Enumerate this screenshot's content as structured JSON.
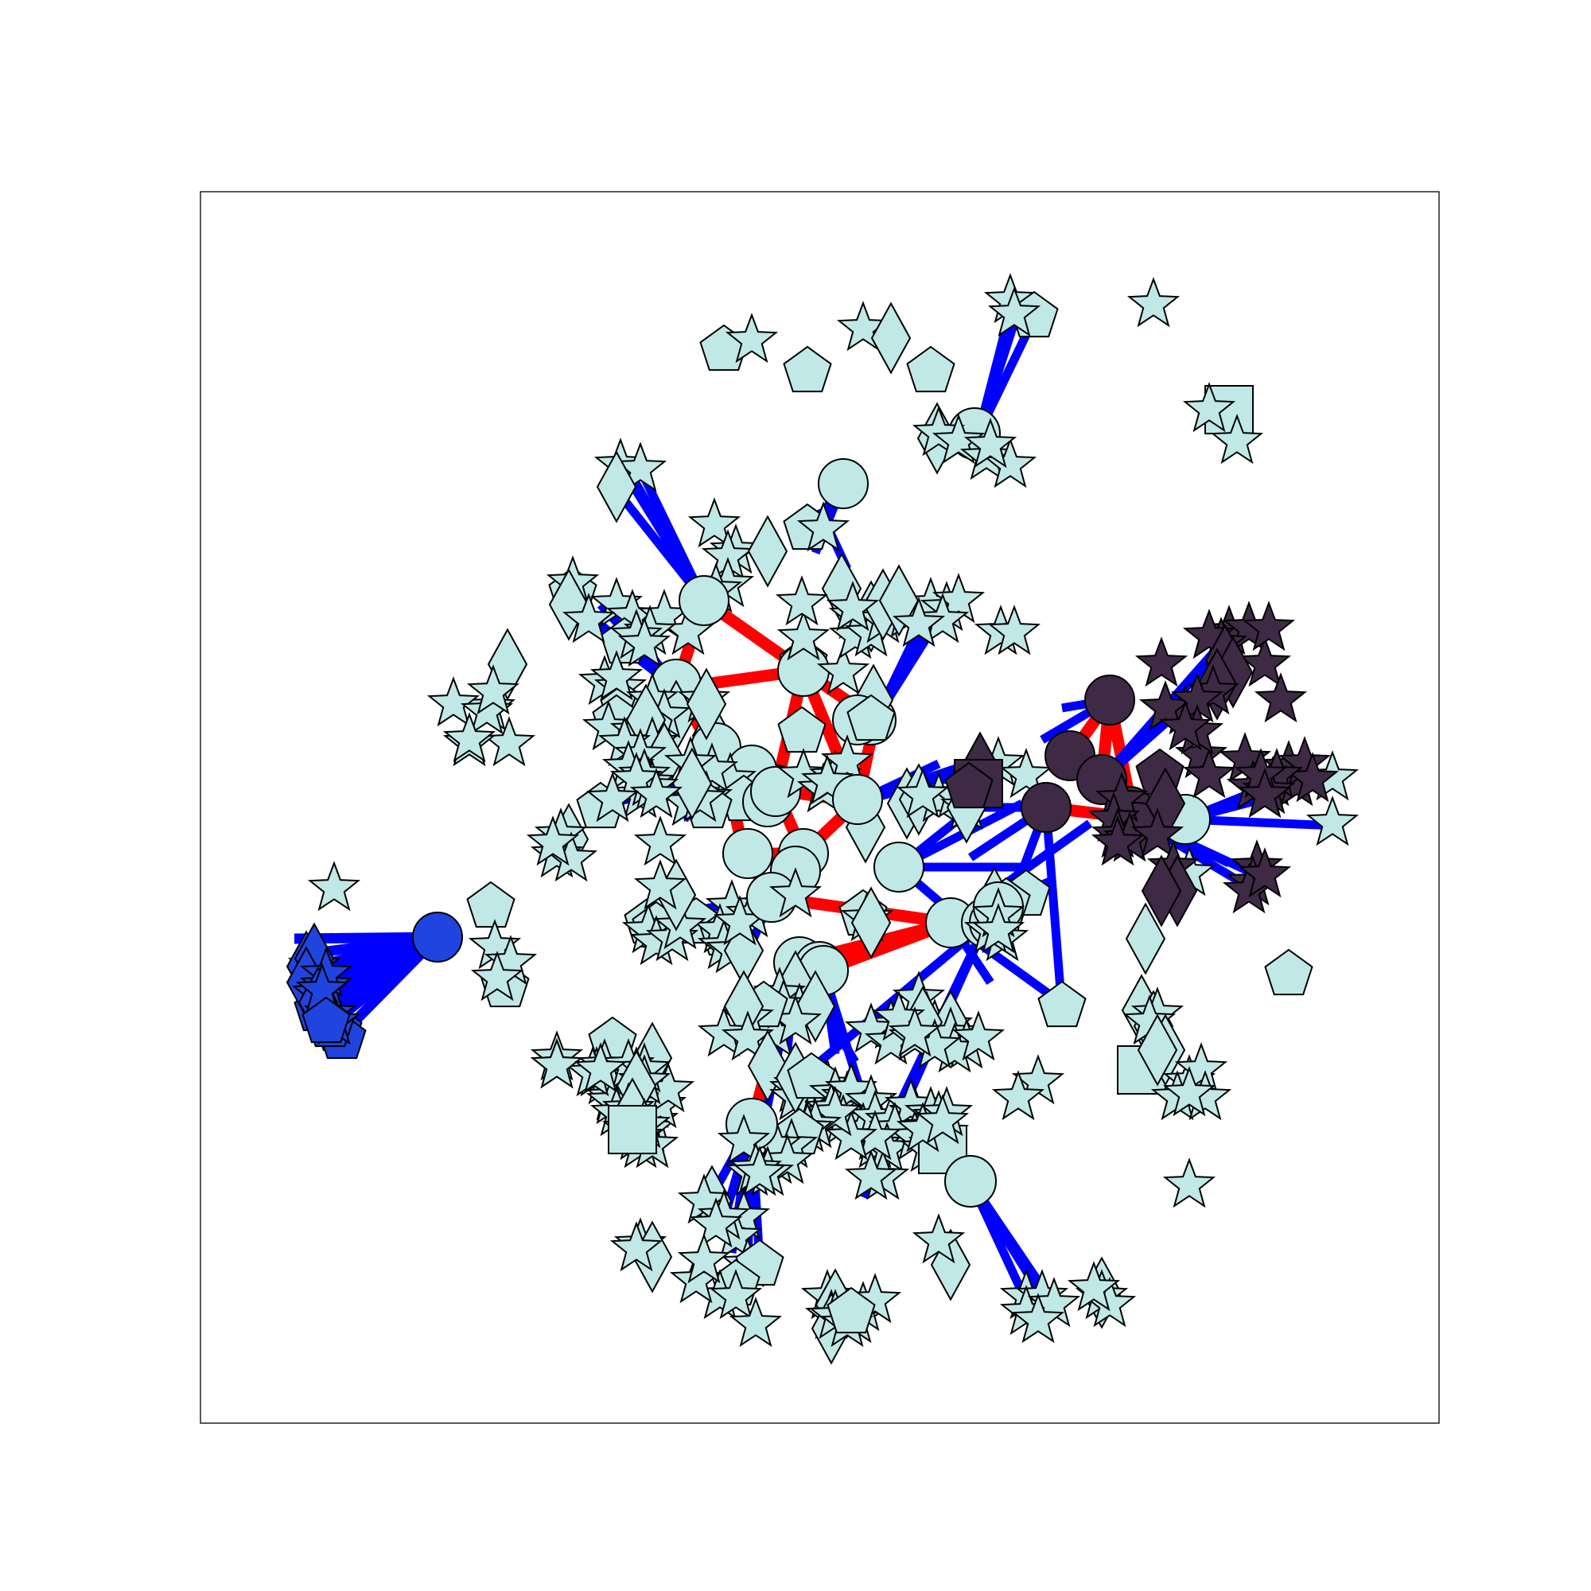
{
  "figure": {
    "kind": "network-graph",
    "colors": {
      "node_light": "#c0e8e6",
      "node_dark": "#3e2a44",
      "node_blue": "#1f44e0",
      "edge_strong": "#ff0000",
      "edge_weak": "#0000ff",
      "node_outline": "#000000",
      "frame": "#000000",
      "background": "#ffffff"
    },
    "node_shapes": [
      "circle",
      "star",
      "pentagon",
      "diamond",
      "square"
    ],
    "clusters": [
      {
        "id": "center",
        "color": "node_light",
        "hub_count": 16
      },
      {
        "id": "right",
        "color": "node_dark",
        "hub_count": 5
      },
      {
        "id": "left",
        "color": "node_blue",
        "hub_count": 1
      }
    ]
  }
}
